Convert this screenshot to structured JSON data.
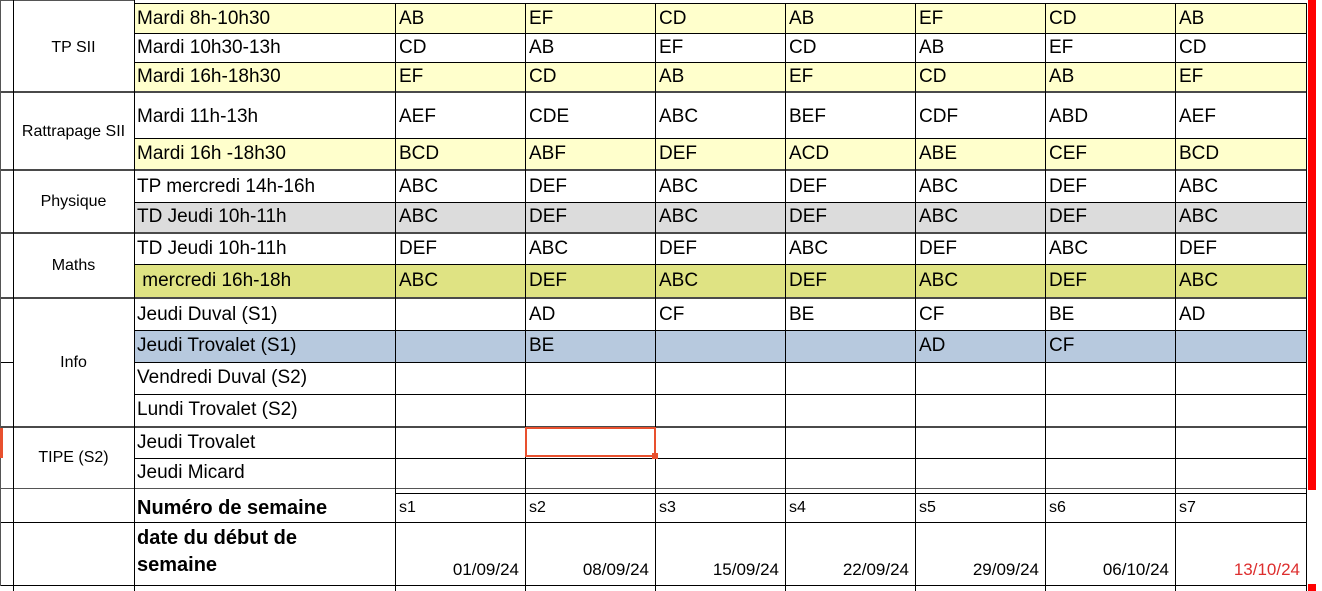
{
  "table": {
    "groups": [
      {
        "label": "TP SII"
      },
      {
        "label": "Rattrapage SII"
      },
      {
        "label": "Physique"
      },
      {
        "label": "Maths"
      },
      {
        "label": "Info"
      },
      {
        "label": "TIPE (S2)"
      }
    ],
    "rows": [
      {
        "label": "Mardi 8h-10h30",
        "bg": "yellow",
        "cells": [
          "AB",
          "EF",
          "CD",
          "AB",
          "EF",
          "CD",
          "AB"
        ]
      },
      {
        "label": "Mardi 10h30-13h",
        "bg": "white",
        "cells": [
          "CD",
          "AB",
          "EF",
          "CD",
          "AB",
          "EF",
          "CD"
        ]
      },
      {
        "label": "Mardi 16h-18h30",
        "bg": "yellow",
        "cells": [
          "EF",
          "CD",
          "AB",
          "EF",
          "CD",
          "AB",
          "EF"
        ]
      },
      {
        "label": "Mardi 11h-13h",
        "bg": "white",
        "cells": [
          "AEF",
          "CDE",
          "ABC",
          "BEF",
          "CDF",
          "ABD",
          "AEF"
        ]
      },
      {
        "label": "Mardi 16h -18h30",
        "bg": "yellow",
        "cells": [
          "BCD",
          "ABF",
          "DEF",
          "ACD",
          "ABE",
          "CEF",
          "BCD"
        ]
      },
      {
        "label": "TP mercredi 14h-16h",
        "bg": "white",
        "cells": [
          "ABC",
          "DEF",
          "ABC",
          "DEF",
          "ABC",
          "DEF",
          "ABC"
        ]
      },
      {
        "label": "TD Jeudi 10h-11h",
        "bg": "gray",
        "cells": [
          "ABC",
          "DEF",
          "ABC",
          "DEF",
          "ABC",
          "DEF",
          "ABC"
        ]
      },
      {
        "label": "TD Jeudi 10h-11h",
        "bg": "white",
        "cells": [
          "DEF",
          "ABC",
          "DEF",
          "ABC",
          "DEF",
          "ABC",
          "DEF"
        ]
      },
      {
        "label": " mercredi 16h-18h",
        "bg": "green",
        "cells": [
          "ABC",
          "DEF",
          "ABC",
          "DEF",
          "ABC",
          "DEF",
          "ABC"
        ]
      },
      {
        "label": "Jeudi Duval (S1)",
        "bg": "white",
        "cells": [
          "",
          "AD",
          "CF",
          "BE",
          "CF",
          "BE",
          "AD"
        ]
      },
      {
        "label": "Jeudi Trovalet (S1)",
        "bg": "blue",
        "cells": [
          "",
          "BE",
          "",
          "",
          "AD",
          "CF",
          ""
        ]
      },
      {
        "label": "Vendredi Duval (S2)",
        "bg": "white",
        "cells": [
          "",
          "",
          "",
          "",
          "",
          "",
          ""
        ]
      },
      {
        "label": "Lundi Trovalet (S2)",
        "bg": "white",
        "cells": [
          "",
          "",
          "",
          "",
          "",
          "",
          ""
        ]
      },
      {
        "label": "Jeudi Trovalet",
        "bg": "white",
        "cells": [
          "",
          "",
          "",
          "",
          "",
          "",
          ""
        ]
      },
      {
        "label": "Jeudi Micard",
        "bg": "white",
        "cells": [
          "",
          "",
          "",
          "",
          "",
          "",
          ""
        ]
      }
    ],
    "week_row": {
      "label": "Numéro de semaine",
      "cells": [
        "s1",
        "s2",
        "s3",
        "s4",
        "s5",
        "s6",
        "s7"
      ]
    },
    "date_row": {
      "label": "date du début de semaine",
      "cells": [
        "01/09/24",
        "08/09/24",
        "15/09/24",
        "22/09/24",
        "29/09/24",
        "06/10/24",
        "13/10/24"
      ],
      "red_cell_index": 6
    },
    "selection": {
      "row_label": "Jeudi Trovalet",
      "week": "s2"
    }
  },
  "colors": {
    "row_yellow": "#ffffcc",
    "row_gray": "#dcdcdc",
    "row_green": "#dfe383",
    "row_blue": "#b7c9de",
    "selection_orange": "#e8502e",
    "page_break_red": "#ff0000",
    "date_red": "#dd2e2e"
  }
}
